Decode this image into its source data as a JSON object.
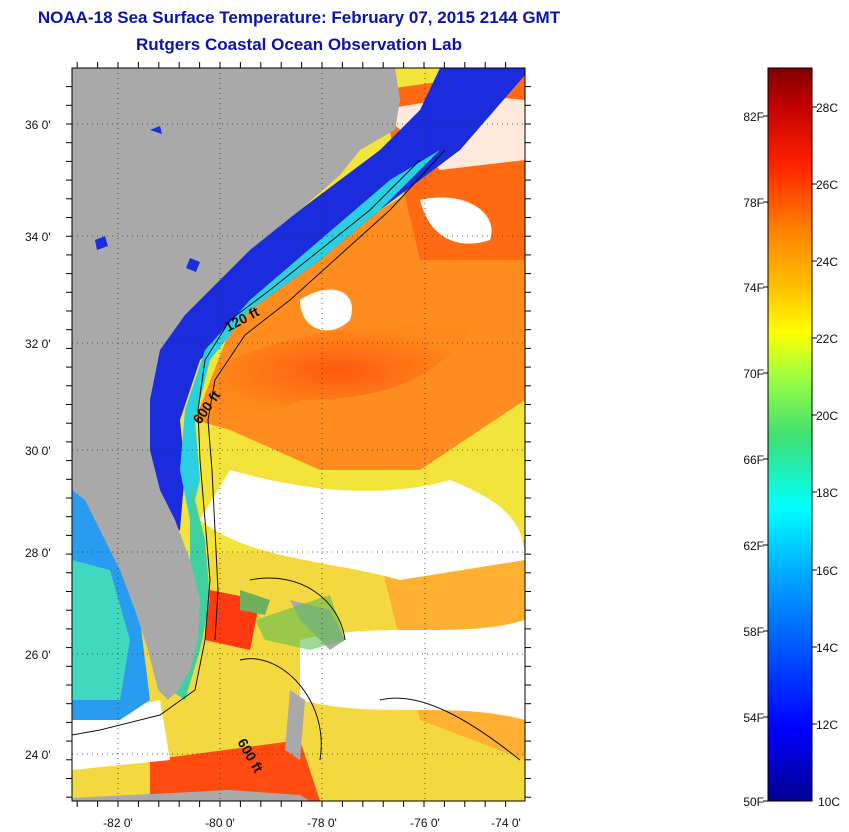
{
  "title": {
    "line1": "NOAA-18 Sea Surface Temperature:  February 07, 2015 2144 GMT",
    "line2": "Rutgers Coastal Ocean Observation Lab"
  },
  "map": {
    "lat_labels": [
      "36 0'",
      "34 0'",
      "32 0'",
      "30 0'",
      "28 0'",
      "26 0'",
      "24 0'"
    ],
    "lon_labels": [
      "-82 0'",
      "-80 0'",
      "-78 0'",
      "-76 0'",
      "-74 0'"
    ],
    "isobath_labels": [
      "120 ft",
      "600 ft",
      "600 ft"
    ],
    "land_color": "#a9a9a9",
    "cloud_color": "#ffffff"
  },
  "colorbar": {
    "f_labels": [
      "82F",
      "78F",
      "74F",
      "70F",
      "66F",
      "62F",
      "58F",
      "54F",
      "50F"
    ],
    "c_labels": [
      "28C",
      "26C",
      "24C",
      "22C",
      "20C",
      "18C",
      "16C",
      "14C",
      "12C",
      "10C"
    ],
    "colors": [
      "#000090",
      "#0000ff",
      "#00a0ff",
      "#00ffff",
      "#20e080",
      "#a0ff40",
      "#ffff00",
      "#ffc000",
      "#ff8000",
      "#ff2000",
      "#c00000",
      "#800000"
    ]
  }
}
